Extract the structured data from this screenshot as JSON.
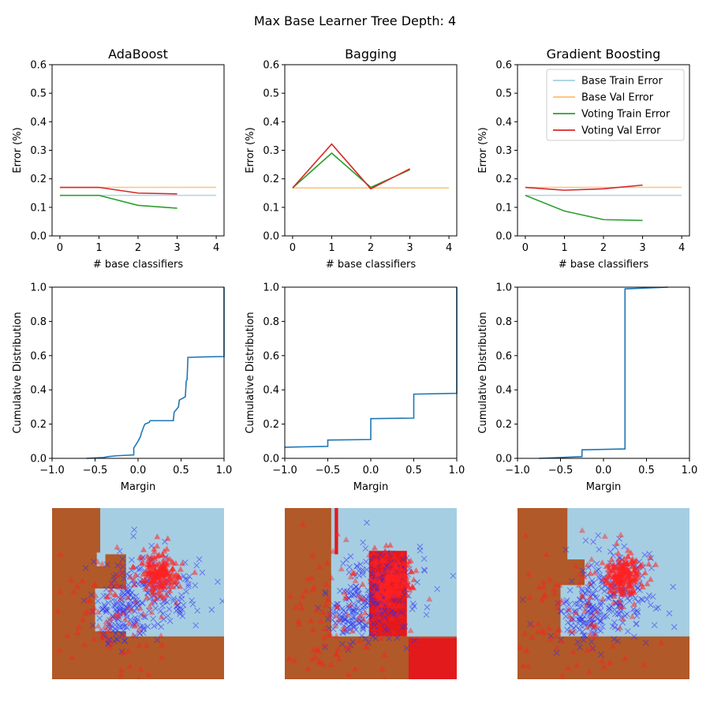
{
  "figure": {
    "suptitle": "Max Base Learner Tree Depth: 4"
  },
  "legend": {
    "entries": [
      {
        "label": "Base Train Error",
        "color": "#a6cee3"
      },
      {
        "label": "Base Val Error",
        "color": "#fdbf6f"
      },
      {
        "label": "Voting Train Error",
        "color": "#2ca02c"
      },
      {
        "label": "Voting Val Error",
        "color": "#d62728"
      }
    ]
  },
  "colors": {
    "region_brown": "#b15928",
    "region_lightblue": "#a6cee3",
    "region_red": "#e31a1c",
    "class_x": "#2b2bf0",
    "class_triangle": "#ff2020",
    "cdf_line": "#1f77b4"
  },
  "chart_data": [
    {
      "type": "line",
      "title": "AdaBoost",
      "xlabel": "# base classifiers",
      "ylabel": "Error (%)",
      "xlim": [
        -0.2,
        4.2
      ],
      "ylim": [
        0,
        0.6
      ],
      "xticks": [
        "0",
        "1",
        "2",
        "3",
        "4"
      ],
      "yticks": [
        "0.0",
        "0.1",
        "0.2",
        "0.3",
        "0.4",
        "0.5",
        "0.6"
      ],
      "series": [
        {
          "name": "Base Train Error",
          "x": [
            0,
            4
          ],
          "y": [
            0.142,
            0.142
          ]
        },
        {
          "name": "Base Val Error",
          "x": [
            0,
            4
          ],
          "y": [
            0.17,
            0.17
          ]
        },
        {
          "name": "Voting Train Error",
          "x": [
            0,
            1,
            2,
            3
          ],
          "y": [
            0.142,
            0.142,
            0.107,
            0.097
          ]
        },
        {
          "name": "Voting Val Error",
          "x": [
            0,
            1,
            2,
            3
          ],
          "y": [
            0.17,
            0.17,
            0.15,
            0.147
          ]
        }
      ]
    },
    {
      "type": "line",
      "title": "Bagging",
      "xlabel": "# base classifiers",
      "ylabel": "Error (%)",
      "xlim": [
        -0.2,
        4.2
      ],
      "ylim": [
        0,
        0.6
      ],
      "xticks": [
        "0",
        "1",
        "2",
        "3",
        "4"
      ],
      "yticks": [
        "0.0",
        "0.1",
        "0.2",
        "0.3",
        "0.4",
        "0.5",
        "0.6"
      ],
      "series": [
        {
          "name": "Base Train Error",
          "x": [
            0,
            4
          ],
          "y": [
            0.168,
            0.168
          ]
        },
        {
          "name": "Base Val Error",
          "x": [
            0,
            4
          ],
          "y": [
            0.168,
            0.168
          ]
        },
        {
          "name": "Voting Train Error",
          "x": [
            0,
            1,
            2,
            3
          ],
          "y": [
            0.168,
            0.29,
            0.17,
            0.232
          ]
        },
        {
          "name": "Voting Val Error",
          "x": [
            0,
            1,
            2,
            3
          ],
          "y": [
            0.168,
            0.322,
            0.165,
            0.235
          ]
        }
      ]
    },
    {
      "type": "line",
      "title": "Gradient Boosting",
      "xlabel": "# base classifiers",
      "ylabel": "Error (%)",
      "xlim": [
        -0.2,
        4.2
      ],
      "ylim": [
        0,
        0.6
      ],
      "xticks": [
        "0",
        "1",
        "2",
        "3",
        "4"
      ],
      "yticks": [
        "0.0",
        "0.1",
        "0.2",
        "0.3",
        "0.4",
        "0.5",
        "0.6"
      ],
      "legend": "top-right",
      "series": [
        {
          "name": "Base Train Error",
          "x": [
            0,
            4
          ],
          "y": [
            0.142,
            0.142
          ]
        },
        {
          "name": "Base Val Error",
          "x": [
            0,
            4
          ],
          "y": [
            0.17,
            0.17
          ]
        },
        {
          "name": "Voting Train Error",
          "x": [
            0,
            1,
            2,
            3
          ],
          "y": [
            0.142,
            0.087,
            0.057,
            0.054
          ]
        },
        {
          "name": "Voting Val Error",
          "x": [
            0,
            1,
            2,
            3
          ],
          "y": [
            0.17,
            0.16,
            0.165,
            0.178
          ]
        }
      ]
    },
    {
      "type": "line",
      "xlabel": "Margin",
      "ylabel": "Cumulative Distribution",
      "xlim": [
        -1,
        1
      ],
      "ylim": [
        0,
        1
      ],
      "xticks": [
        "−1.0",
        "−0.5",
        "0.0",
        "0.5",
        "1.0"
      ],
      "yticks": [
        "0.0",
        "0.2",
        "0.4",
        "0.6",
        "0.8",
        "1.0"
      ],
      "series": [
        {
          "x": [
            -0.6,
            -0.4,
            -0.35,
            -0.25,
            -0.05,
            -0.05,
            0.0,
            0.03,
            0.04,
            0.07,
            0.08,
            0.13,
            0.14,
            0.41,
            0.42,
            0.47,
            0.48,
            0.55,
            0.56,
            0.57,
            0.58,
            1.0,
            1.0
          ],
          "y": [
            0.0,
            0.005,
            0.01,
            0.015,
            0.02,
            0.06,
            0.1,
            0.13,
            0.15,
            0.19,
            0.2,
            0.21,
            0.22,
            0.22,
            0.27,
            0.3,
            0.34,
            0.36,
            0.45,
            0.46,
            0.59,
            0.595,
            1.0
          ]
        }
      ]
    },
    {
      "type": "line",
      "xlabel": "Margin",
      "ylabel": "Cumulative Distribution",
      "xlim": [
        -1,
        1
      ],
      "ylim": [
        0,
        1
      ],
      "xticks": [
        "−1.0",
        "−0.5",
        "0.0",
        "0.5",
        "1.0"
      ],
      "yticks": [
        "0.0",
        "0.2",
        "0.4",
        "0.6",
        "0.8",
        "1.0"
      ],
      "series": [
        {
          "x": [
            -1.0,
            -0.5,
            -0.5,
            0.0,
            0.0,
            0.5,
            0.5,
            1.0,
            1.0
          ],
          "y": [
            0.065,
            0.07,
            0.107,
            0.11,
            0.232,
            0.235,
            0.375,
            0.38,
            1.0
          ]
        }
      ]
    },
    {
      "type": "line",
      "xlabel": "Margin",
      "ylabel": "Cumulative Distribution",
      "xlim": [
        -1,
        1
      ],
      "ylim": [
        0,
        1
      ],
      "xticks": [
        "−1.0",
        "−0.5",
        "0.0",
        "0.5",
        "1.0"
      ],
      "yticks": [
        "0.0",
        "0.2",
        "0.4",
        "0.6",
        "0.8",
        "1.0"
      ],
      "series": [
        {
          "x": [
            -0.75,
            -0.25,
            -0.25,
            0.25,
            0.25,
            0.75
          ],
          "y": [
            0.0,
            0.01,
            0.05,
            0.055,
            0.99,
            1.0
          ]
        }
      ]
    },
    {
      "type": "heatmap",
      "name": "AdaBoost decision regions",
      "xlim": [
        0,
        1
      ],
      "ylim": [
        0,
        1
      ],
      "regions": [
        {
          "color": "region_brown",
          "rect": [
            0,
            0,
            1,
            1
          ]
        },
        {
          "color": "region_lightblue",
          "rect": [
            0.28,
            0.73,
            0.72,
            0.27
          ]
        },
        {
          "color": "region_lightblue",
          "rect": [
            0.43,
            0.25,
            0.57,
            0.5
          ]
        },
        {
          "color": "region_lightblue",
          "rect": [
            0.26,
            0.66,
            0.05,
            0.08
          ]
        },
        {
          "color": "region_lightblue",
          "rect": [
            0.25,
            0.28,
            0.18,
            0.25
          ]
        },
        {
          "color": "region_lightblue",
          "rect": [
            0.53,
            0.37,
            0.22,
            0.12
          ]
        }
      ],
      "points": {
        "x_class": {
          "center": [
            0.56,
            0.52
          ],
          "spread": [
            0.13,
            0.12
          ],
          "n": 190,
          "seed": 11
        },
        "x_cluster2": {
          "center": [
            0.38,
            0.35
          ],
          "spread": [
            0.07,
            0.08
          ],
          "n": 90,
          "seed": 12
        },
        "tri_class": {
          "center": [
            0.62,
            0.62
          ],
          "spread": [
            0.06,
            0.06
          ],
          "n": 190,
          "seed": 13
        },
        "tri_scatter": {
          "center": [
            0.35,
            0.35
          ],
          "spread": [
            0.18,
            0.2
          ],
          "n": 110,
          "seed": 14
        }
      }
    },
    {
      "type": "heatmap",
      "name": "Bagging decision regions",
      "xlim": [
        0,
        1
      ],
      "ylim": [
        0,
        1
      ],
      "regions": [
        {
          "color": "region_brown",
          "rect": [
            0,
            0,
            1,
            1
          ]
        },
        {
          "color": "region_lightblue",
          "rect": [
            0.27,
            0.62,
            0.73,
            0.38
          ]
        },
        {
          "color": "region_lightblue",
          "rect": [
            0.27,
            0.25,
            0.73,
            0.47
          ]
        },
        {
          "color": "region_red",
          "rect": [
            0.72,
            0.0,
            0.28,
            0.24
          ]
        },
        {
          "color": "region_red",
          "rect": [
            0.29,
            0.73,
            0.02,
            0.27
          ]
        },
        {
          "color": "region_red",
          "rect": [
            0.49,
            0.25,
            0.22,
            0.5
          ]
        }
      ],
      "points": {
        "x_class": {
          "center": [
            0.56,
            0.52
          ],
          "spread": [
            0.13,
            0.12
          ],
          "n": 190,
          "seed": 21
        },
        "x_cluster2": {
          "center": [
            0.38,
            0.35
          ],
          "spread": [
            0.07,
            0.08
          ],
          "n": 90,
          "seed": 22
        },
        "tri_class": {
          "center": [
            0.62,
            0.58
          ],
          "spread": [
            0.06,
            0.08
          ],
          "n": 190,
          "seed": 23
        },
        "tri_scatter": {
          "center": [
            0.35,
            0.35
          ],
          "spread": [
            0.18,
            0.2
          ],
          "n": 110,
          "seed": 24
        }
      }
    },
    {
      "type": "heatmap",
      "name": "Gradient Boosting decision regions",
      "xlim": [
        0,
        1
      ],
      "ylim": [
        0,
        1
      ],
      "regions": [
        {
          "color": "region_brown",
          "rect": [
            0,
            0,
            1,
            1
          ]
        },
        {
          "color": "region_lightblue",
          "rect": [
            0.29,
            0.7,
            0.71,
            0.3
          ]
        },
        {
          "color": "region_lightblue",
          "rect": [
            0.39,
            0.25,
            0.61,
            0.5
          ]
        },
        {
          "color": "region_lightblue",
          "rect": [
            0.25,
            0.25,
            0.16,
            0.3
          ]
        }
      ],
      "points": {
        "x_class": {
          "center": [
            0.56,
            0.52
          ],
          "spread": [
            0.13,
            0.12
          ],
          "n": 190,
          "seed": 31
        },
        "x_cluster2": {
          "center": [
            0.38,
            0.35
          ],
          "spread": [
            0.07,
            0.08
          ],
          "n": 90,
          "seed": 32
        },
        "tri_class": {
          "center": [
            0.62,
            0.6
          ],
          "spread": [
            0.06,
            0.06
          ],
          "n": 190,
          "seed": 33
        },
        "tri_scatter": {
          "center": [
            0.35,
            0.35
          ],
          "spread": [
            0.18,
            0.2
          ],
          "n": 110,
          "seed": 34
        }
      }
    }
  ]
}
